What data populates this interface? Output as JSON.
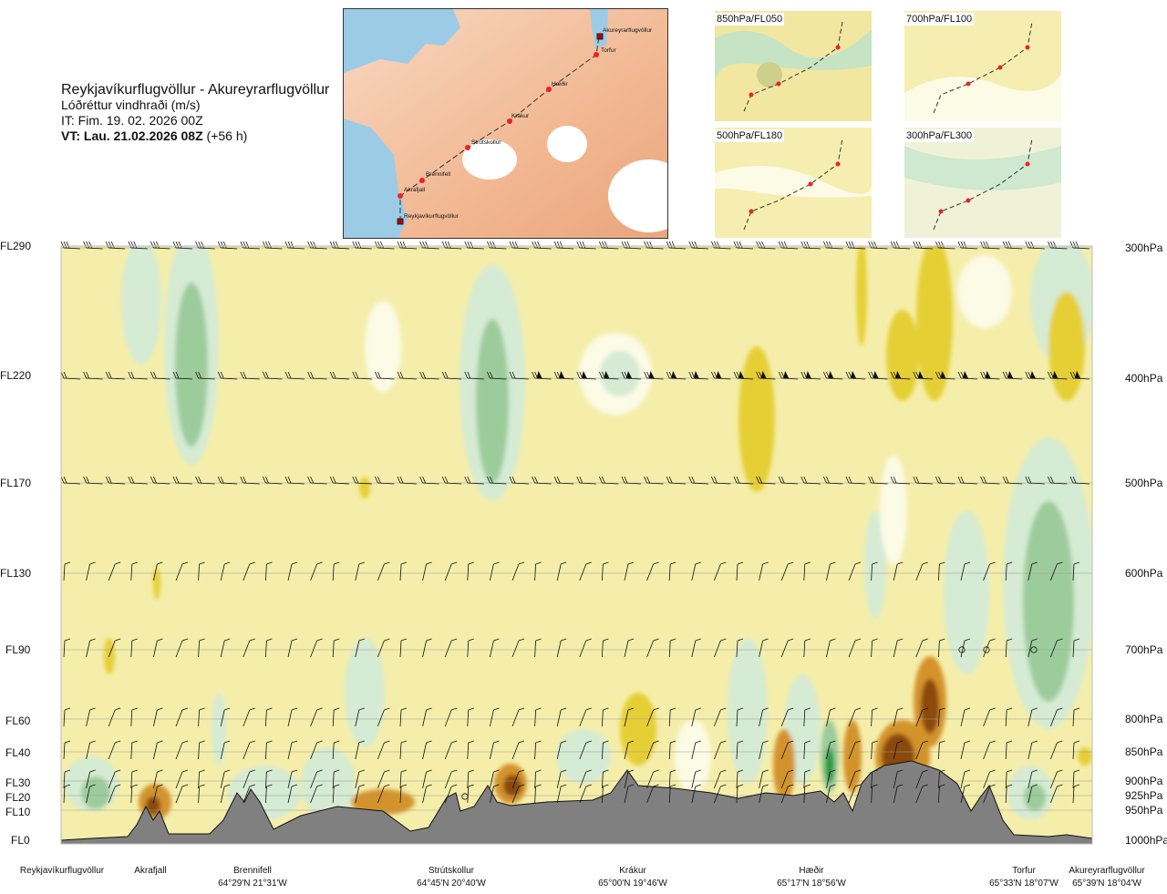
{
  "header": {
    "route": "Reykjavíkurflugvöllur - Akureyrarflugvöllur",
    "variable": "Lóðréttur vindhraði (m/s)",
    "it": "IT: Fim. 19. 02. 2026 00Z",
    "vt_bold": "VT: Lau. 21.02.2026 08Z",
    "vt_lead": " (+56 h)"
  },
  "map": {
    "waypoints": [
      "Akureyrarflugvöllur",
      "Torfur",
      "Hæðir",
      "Krákur",
      "Strútskollur",
      "Brennifell",
      "Akrafjall",
      "Reykjavíkurflugvöllur"
    ]
  },
  "panels": [
    "850hPa/FL050",
    "700hPa/FL100",
    "500hPa/FL180",
    "300hPa/FL300"
  ],
  "chart_data": {
    "type": "heatmap",
    "title": "Lóðréttur vindhraði (m/s)",
    "x_axis_stations": [
      {
        "name": "Reykjavíkurflugvöllur",
        "coord": ""
      },
      {
        "name": "Akrafjall",
        "coord": ""
      },
      {
        "name": "Brennifell",
        "coord": "64°29'N 21°31'W"
      },
      {
        "name": "Strútskollur",
        "coord": "64°45'N 20°40'W"
      },
      {
        "name": "Krákur",
        "coord": "65°00'N 19°46'W"
      },
      {
        "name": "Hæðir",
        "coord": "65°17'N 18°56'W"
      },
      {
        "name": "Torfur",
        "coord": "65°33'N 18°07'W"
      },
      {
        "name": "Akureyrarflugvöllur",
        "coord": "65°39'N 18°04'W"
      }
    ],
    "left_axis_flight_levels": [
      "FL290",
      "FL220",
      "FL170",
      "FL130",
      "FL90",
      "FL60",
      "FL40",
      "FL30",
      "FL20",
      "FL10",
      "FL0"
    ],
    "right_axis_pressure": [
      "300hPa",
      "400hPa",
      "500hPa",
      "600hPa",
      "700hPa",
      "800hPa",
      "850hPa",
      "900hPa",
      "925hPa",
      "950hPa",
      "1000hPa"
    ],
    "pressure_levels_hpa": [
      300,
      400,
      500,
      600,
      700,
      800,
      850,
      900,
      925,
      950,
      1000
    ],
    "colors": {
      "strong_down": "#8b4a10",
      "down": "#d4932b",
      "weak_down": "#e6cf35",
      "neutral": "#f5eeaa",
      "weak_up": "#fbfbe6",
      "up": "#d5ebd3",
      "strong_up": "#9ccc9c",
      "very_strong_up": "#2a9a3c",
      "terrain": "#808080"
    }
  }
}
